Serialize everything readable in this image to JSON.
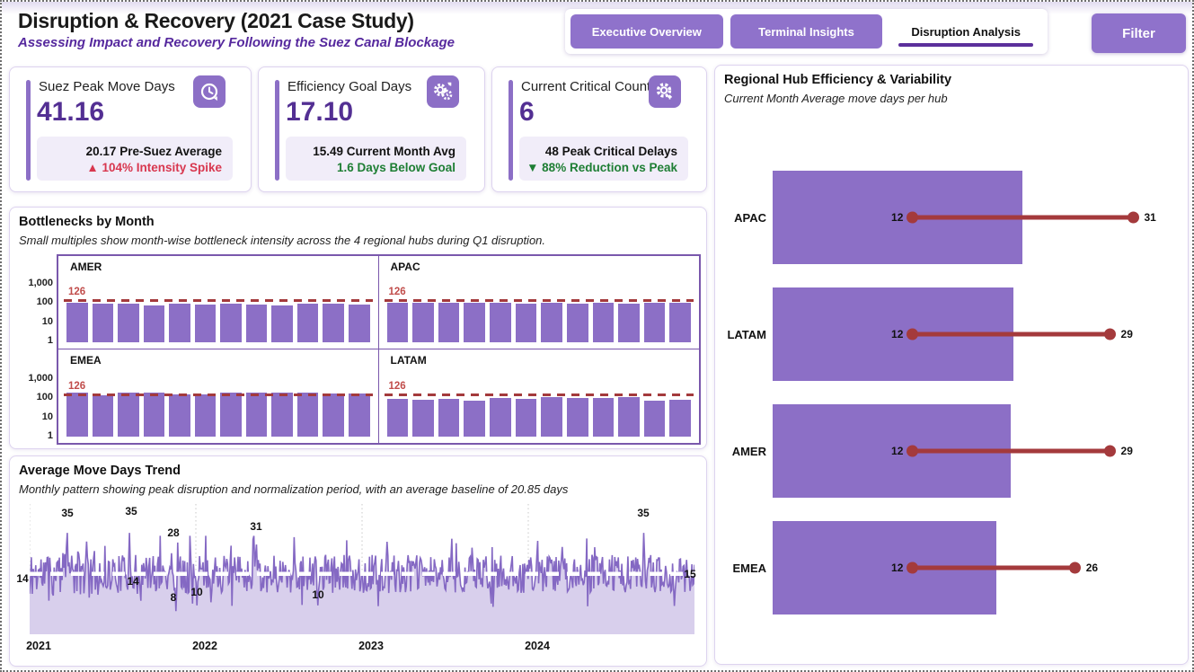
{
  "header": {
    "title": "Disruption & Recovery (2021 Case Study)",
    "subtitle": "Assessing Impact and Recovery Following the Suez Canal Blockage"
  },
  "nav": {
    "tabs": [
      {
        "label": "Executive Overview",
        "active": false
      },
      {
        "label": "Terminal Insights",
        "active": false
      },
      {
        "label": "Disruption Analysis",
        "active": true
      }
    ],
    "filter_label": "Filter"
  },
  "kpis": [
    {
      "title": "Suez Peak Move Days",
      "value": "41.16",
      "icon": "timer-history-icon",
      "detail_primary": "20.17 Pre-Suez Average",
      "detail_secondary": "▲ 104% Intensity Spike",
      "secondary_color": "#d8374f"
    },
    {
      "title": "Efficiency Goal Days",
      "value": "17.10",
      "icon": "gears-clock-icon",
      "detail_primary": "15.49 Current Month Avg",
      "detail_secondary": "1.6 Days Below Goal",
      "secondary_color": "#1e7e34"
    },
    {
      "title": "Current Critical Count",
      "value": "6",
      "icon": "gear-up-icon",
      "detail_primary": "48 Peak Critical Delays",
      "detail_secondary": "▼ 88% Reduction vs Peak",
      "secondary_color": "#1e7e34"
    }
  ],
  "sections": {
    "bottlenecks": {
      "title": "Bottlenecks by Month",
      "subtitle": "Small multiples show month-wise bottleneck intensity across the 4 regional hubs during Q1 disruption."
    },
    "trend": {
      "title": "Average Move Days Trend",
      "subtitle": "Monthly pattern showing peak disruption and normalization period, with an average baseline of 20.85 days"
    },
    "regional": {
      "title": "Regional Hub Efficiency & Variability",
      "subtitle": "Current Month Average move days per hub"
    }
  },
  "chart_data": [
    {
      "type": "bar",
      "title": "Bottlenecks by Month",
      "y_scale": "log",
      "y_ticks": [
        1,
        10,
        100,
        1000
      ],
      "y_tick_labels": [
        "1,000",
        "100",
        "10",
        "1"
      ],
      "reference_line": 126,
      "reference_label": "126",
      "panels": [
        {
          "name": "AMER",
          "values": [
            118,
            108,
            106,
            88,
            105,
            96,
            104,
            94,
            86,
            108,
            104,
            92
          ]
        },
        {
          "name": "APAC",
          "values": [
            112,
            118,
            122,
            116,
            113,
            108,
            114,
            110,
            113,
            109,
            120,
            113
          ]
        },
        {
          "name": "EMEA",
          "values": [
            190,
            150,
            210,
            190,
            160,
            155,
            200,
            195,
            200,
            210,
            170,
            185
          ]
        },
        {
          "name": "LATAM",
          "values": [
            95,
            88,
            95,
            78,
            100,
            92,
            115,
            100,
            108,
            112,
            72,
            88
          ]
        }
      ]
    },
    {
      "type": "area",
      "title": "Average Move Days Trend",
      "baseline": 20.85,
      "ylim": [
        0,
        45
      ],
      "x_ticks": [
        "2021",
        "2022",
        "2023",
        "2024"
      ],
      "annotations": [
        {
          "label": "14",
          "x": -8,
          "y": 85
        },
        {
          "label": "35",
          "x": 42,
          "y": 12
        },
        {
          "label": "35",
          "x": 113,
          "y": 10
        },
        {
          "label": "28",
          "x": 160,
          "y": 34
        },
        {
          "label": "14",
          "x": 115,
          "y": 88
        },
        {
          "label": "8",
          "x": 160,
          "y": 106
        },
        {
          "label": "10",
          "x": 186,
          "y": 100
        },
        {
          "label": "31",
          "x": 252,
          "y": 27
        },
        {
          "label": "10",
          "x": 321,
          "y": 103
        },
        {
          "label": "35",
          "x": 683,
          "y": 12
        },
        {
          "label": "15",
          "x": 735,
          "y": 80
        }
      ],
      "forced_points": [
        {
          "f": 0.0,
          "v": 14
        },
        {
          "f": 0.057,
          "v": 35
        },
        {
          "f": 0.15,
          "v": 35
        },
        {
          "f": 0.162,
          "v": 14
        },
        {
          "f": 0.213,
          "v": 28
        },
        {
          "f": 0.22,
          "v": 8
        },
        {
          "f": 0.251,
          "v": 10
        },
        {
          "f": 0.341,
          "v": 31
        },
        {
          "f": 0.434,
          "v": 10
        },
        {
          "f": 0.923,
          "v": 35
        },
        {
          "f": 0.993,
          "v": 15
        }
      ],
      "seed": 11,
      "n_points": 760
    },
    {
      "type": "bar+dumbbell",
      "title": "Regional Hub Efficiency & Variability",
      "categories": [
        "APAC",
        "LATAM",
        "AMER",
        "EMEA"
      ],
      "bar_values": [
        21.5,
        20.7,
        20.5,
        19.2
      ],
      "dot_min": [
        12,
        12,
        12,
        12
      ],
      "dot_max": [
        31,
        29,
        29,
        26
      ]
    }
  ],
  "colors": {
    "accent_purple": "#8c6fc6",
    "deep_purple": "#532f93",
    "brand_purple": "#56299e",
    "brick_red": "#a43a3c",
    "alert_red": "#d8374f",
    "good_green": "#1e7e34",
    "area_fill": "#d8cfec"
  }
}
